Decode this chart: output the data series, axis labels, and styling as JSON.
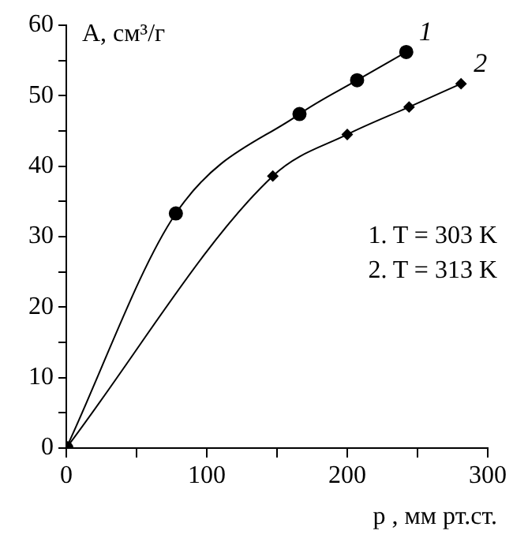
{
  "chart_data": {
    "type": "line",
    "ylabel": "A, см³/г",
    "xlabel": "p , мм рт.ст.",
    "annotations": [
      "1. T = 303 K",
      "2. T = 313 K"
    ],
    "xlim": [
      0,
      300
    ],
    "xticks": [
      0,
      {
        "value": 50,
        "label": null
      },
      100,
      {
        "value": 150,
        "label": null
      },
      200,
      {
        "value": 250,
        "label": null
      },
      300
    ],
    "ylim": [
      0,
      60
    ],
    "yticks": [
      0,
      {
        "value": 5,
        "label": null
      },
      10,
      {
        "value": 15,
        "label": null
      },
      20,
      {
        "value": 25,
        "label": null
      },
      30,
      {
        "value": 35,
        "label": null
      },
      40,
      {
        "value": 45,
        "label": null
      },
      50,
      {
        "value": 55,
        "label": null
      },
      60
    ],
    "grid": false,
    "legend": false,
    "line_style": "solid",
    "series": [
      {
        "name": "1",
        "color": "#000000",
        "marker": "circle",
        "x": [
          0,
          78,
          166,
          207,
          242
        ],
        "values": [
          0,
          33.3,
          47.4,
          52.2,
          56.2
        ]
      },
      {
        "name": "2",
        "color": "#000000",
        "marker": "diamond",
        "x": [
          0,
          147,
          200,
          244,
          281
        ],
        "values": [
          0,
          38.6,
          44.5,
          48.4,
          51.7
        ]
      }
    ]
  }
}
